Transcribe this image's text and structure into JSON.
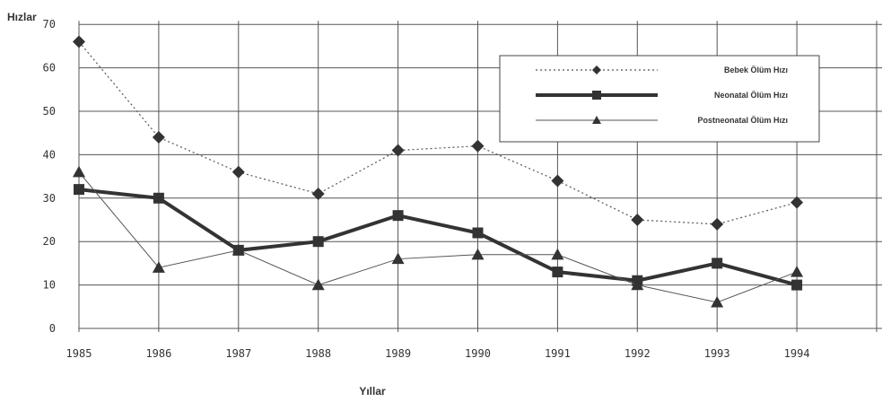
{
  "chart_data": {
    "type": "line",
    "ylabel": "Hızlar",
    "xlabel": "Yıllar",
    "categories": [
      "1985",
      "1986",
      "1987",
      "1988",
      "1989",
      "1990",
      "1991",
      "1992",
      "1993",
      "1994"
    ],
    "y_ticks": [
      "0",
      "10",
      "20",
      "30",
      "40",
      "50",
      "60",
      "70"
    ],
    "ylim": [
      0,
      70
    ],
    "grid": true,
    "legend_position": "top-right",
    "series": [
      {
        "name": "Bebek Ölüm Hızı",
        "marker": "diamond",
        "style": "dotted",
        "values": [
          66,
          44,
          36,
          31,
          41,
          42,
          34,
          25,
          24,
          29
        ]
      },
      {
        "name": "Neonatal Ölüm Hızı",
        "marker": "square",
        "style": "thick",
        "values": [
          32,
          30,
          18,
          20,
          26,
          22,
          13,
          11,
          15,
          10
        ]
      },
      {
        "name": "Postneonatal Ölüm Hızı",
        "marker": "triangle",
        "style": "thin",
        "values": [
          36,
          14,
          18,
          10,
          16,
          17,
          17,
          10,
          6,
          13
        ]
      }
    ]
  }
}
